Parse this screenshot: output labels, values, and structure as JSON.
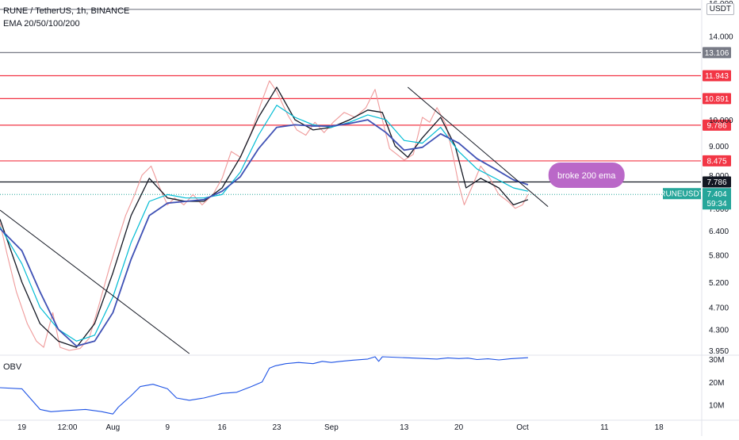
{
  "chart_data": [
    {
      "type": "candlestick",
      "title": "RUNE / TetherUS, 1h, BINANCE",
      "indicator_label": "EMA 20/50/100/200",
      "currency": "USDT",
      "y_scale": "log",
      "ylim": [
        3.9,
        16.2
      ],
      "price_ticks": [
        "16.000",
        "14.000",
        "10.000",
        "9.000",
        "8.000",
        "7.000",
        "6.400",
        "5.800",
        "5.200",
        "4.700",
        "4.300",
        "3.950"
      ],
      "x_ticks": [
        {
          "t": 0,
          "label": "19"
        },
        {
          "t": 2.5,
          "label": "12:00"
        },
        {
          "t": 5,
          "label": "Aug"
        },
        {
          "t": 8,
          "label": "9"
        },
        {
          "t": 11,
          "label": "16"
        },
        {
          "t": 14,
          "label": "23"
        },
        {
          "t": 17,
          "label": "Sep"
        },
        {
          "t": 21,
          "label": "13"
        },
        {
          "t": 24,
          "label": "20"
        },
        {
          "t": 27.5,
          "label": "Oct"
        },
        {
          "t": 32,
          "label": "11"
        },
        {
          "t": 35,
          "label": "18"
        }
      ],
      "x_range": [
        -1.2,
        37.3
      ],
      "horizontal_levels": [
        {
          "value": 15.6,
          "label": "",
          "color": "#787b86",
          "labeled": false
        },
        {
          "value": 13.106,
          "label": "13.106",
          "color": "#787b86"
        },
        {
          "value": 11.943,
          "label": "11.943",
          "color": "#f23645"
        },
        {
          "value": 10.891,
          "label": "10.891",
          "color": "#f23645"
        },
        {
          "value": 9.786,
          "label": "9.786",
          "color": "#f23645"
        },
        {
          "value": 8.475,
          "label": "8.475",
          "color": "#f23645"
        },
        {
          "value": 7.786,
          "label": "7.786",
          "color": "#131722"
        }
      ],
      "current_price": {
        "symbol": "RUNEUSDT",
        "value": "7.404",
        "countdown": "59:34",
        "price": 7.404,
        "color": "#26a69a"
      },
      "trendlines": [
        {
          "from": [
            -1.2,
            6.95
          ],
          "to": [
            9.2,
            3.9
          ]
        },
        {
          "from": [
            21.2,
            11.4
          ],
          "to": [
            28.9,
            7.05
          ]
        }
      ],
      "annotation": {
        "text": "broke 200 ema",
        "color": "#ba68c8",
        "at": [
          29.1,
          8.0
        ]
      },
      "ohlc_path": [
        [
          -1.2,
          6.6
        ],
        [
          -0.8,
          5.8
        ],
        [
          -0.3,
          5.0
        ],
        [
          0.3,
          4.4
        ],
        [
          0.8,
          4.1
        ],
        [
          1.2,
          4.0
        ],
        [
          1.7,
          4.6
        ],
        [
          2.1,
          4.0
        ],
        [
          2.6,
          3.95
        ],
        [
          3.2,
          3.98
        ],
        [
          3.7,
          4.15
        ],
        [
          4.2,
          4.7
        ],
        [
          4.8,
          5.5
        ],
        [
          5.3,
          6.2
        ],
        [
          5.7,
          6.8
        ],
        [
          6.2,
          7.4
        ],
        [
          6.6,
          8.0
        ],
        [
          7.1,
          8.3
        ],
        [
          7.5,
          7.7
        ],
        [
          8.0,
          7.1
        ],
        [
          8.4,
          7.3
        ],
        [
          8.9,
          7.1
        ],
        [
          9.4,
          7.4
        ],
        [
          9.9,
          7.1
        ],
        [
          10.5,
          7.4
        ],
        [
          11.0,
          7.9
        ],
        [
          11.5,
          8.8
        ],
        [
          12.0,
          8.6
        ],
        [
          12.6,
          9.5
        ],
        [
          13.1,
          10.6
        ],
        [
          13.6,
          11.7
        ],
        [
          14.0,
          11.2
        ],
        [
          14.6,
          10.2
        ],
        [
          15.1,
          9.6
        ],
        [
          15.6,
          9.4
        ],
        [
          16.1,
          9.9
        ],
        [
          16.6,
          9.5
        ],
        [
          17.1,
          9.9
        ],
        [
          17.7,
          10.3
        ],
        [
          18.3,
          10.1
        ],
        [
          18.9,
          10.5
        ],
        [
          19.4,
          11.3
        ],
        [
          19.8,
          10.0
        ],
        [
          20.2,
          8.9
        ],
        [
          20.6,
          8.7
        ],
        [
          21.0,
          8.5
        ],
        [
          21.5,
          8.7
        ],
        [
          22.0,
          10.1
        ],
        [
          22.4,
          9.9
        ],
        [
          22.8,
          10.5
        ],
        [
          23.3,
          9.8
        ],
        [
          23.7,
          8.6
        ],
        [
          24.0,
          7.7
        ],
        [
          24.3,
          7.1
        ],
        [
          24.7,
          7.6
        ],
        [
          25.2,
          8.3
        ],
        [
          25.7,
          7.9
        ],
        [
          26.2,
          7.4
        ],
        [
          26.7,
          7.2
        ],
        [
          27.1,
          7.0
        ],
        [
          27.5,
          7.1
        ],
        [
          27.8,
          7.404
        ]
      ],
      "ema_series": [
        {
          "period": 20,
          "color": "#131722",
          "points": [
            [
              -1.2,
              6.7
            ],
            [
              0,
              5.2
            ],
            [
              1,
              4.4
            ],
            [
              2,
              4.1
            ],
            [
              3,
              4.0
            ],
            [
              4,
              4.4
            ],
            [
              5,
              5.4
            ],
            [
              6,
              6.8
            ],
            [
              7,
              7.9
            ],
            [
              8,
              7.3
            ],
            [
              9,
              7.2
            ],
            [
              10,
              7.2
            ],
            [
              11,
              7.6
            ],
            [
              12,
              8.6
            ],
            [
              13,
              10.1
            ],
            [
              14,
              11.4
            ],
            [
              15,
              10.0
            ],
            [
              16,
              9.6
            ],
            [
              17,
              9.7
            ],
            [
              18,
              10.0
            ],
            [
              19,
              10.4
            ],
            [
              19.8,
              10.3
            ],
            [
              20.5,
              9.0
            ],
            [
              21.2,
              8.6
            ],
            [
              22,
              9.3
            ],
            [
              23,
              10.1
            ],
            [
              23.8,
              9.0
            ],
            [
              24.4,
              7.6
            ],
            [
              25.2,
              7.9
            ],
            [
              26.2,
              7.6
            ],
            [
              27,
              7.1
            ],
            [
              27.8,
              7.25
            ]
          ]
        },
        {
          "period": 50,
          "color": "#00bcd4",
          "points": [
            [
              -1.2,
              6.5
            ],
            [
              0,
              5.6
            ],
            [
              1,
              4.7
            ],
            [
              2,
              4.3
            ],
            [
              3,
              4.1
            ],
            [
              4,
              4.2
            ],
            [
              5,
              4.9
            ],
            [
              6,
              6.1
            ],
            [
              7,
              7.2
            ],
            [
              8,
              7.4
            ],
            [
              9,
              7.3
            ],
            [
              10,
              7.3
            ],
            [
              11,
              7.4
            ],
            [
              12,
              8.1
            ],
            [
              13,
              9.4
            ],
            [
              14,
              10.6
            ],
            [
              15,
              10.1
            ],
            [
              16,
              9.8
            ],
            [
              17,
              9.7
            ],
            [
              18,
              9.9
            ],
            [
              19,
              10.2
            ],
            [
              20,
              10.0
            ],
            [
              21,
              9.2
            ],
            [
              22,
              9.1
            ],
            [
              23,
              9.7
            ],
            [
              24,
              8.8
            ],
            [
              25,
              8.2
            ],
            [
              26,
              7.9
            ],
            [
              27,
              7.6
            ],
            [
              27.8,
              7.5
            ]
          ]
        },
        {
          "period": 200,
          "color": "#3f51b5",
          "points": [
            [
              -1.2,
              6.45
            ],
            [
              0,
              5.9
            ],
            [
              1,
              5.0
            ],
            [
              2,
              4.3
            ],
            [
              3,
              4.02
            ],
            [
              4,
              4.1
            ],
            [
              5,
              4.6
            ],
            [
              6,
              5.7
            ],
            [
              7,
              6.8
            ],
            [
              8,
              7.15
            ],
            [
              9,
              7.2
            ],
            [
              10,
              7.25
            ],
            [
              11,
              7.5
            ],
            [
              12,
              7.95
            ],
            [
              13,
              8.9
            ],
            [
              14,
              9.7
            ],
            [
              15,
              9.8
            ],
            [
              16,
              9.75
            ],
            [
              17,
              9.75
            ],
            [
              18,
              9.85
            ],
            [
              19,
              10.0
            ],
            [
              20,
              9.5
            ],
            [
              21,
              8.85
            ],
            [
              22,
              8.95
            ],
            [
              23,
              9.45
            ],
            [
              24,
              9.1
            ],
            [
              25,
              8.55
            ],
            [
              26,
              8.2
            ],
            [
              27,
              7.85
            ],
            [
              27.8,
              7.7
            ]
          ]
        }
      ]
    },
    {
      "type": "line",
      "title": "OBV",
      "y_ticks": [
        "30M",
        "20M",
        "10M"
      ],
      "ylim": [
        4,
        31
      ],
      "x_range": [
        -1.2,
        37.3
      ],
      "color": "#1e53e5",
      "x": [
        -1.2,
        0,
        1,
        1.6,
        2.4,
        3.5,
        4.4,
        5,
        5.3,
        6,
        6.5,
        7.2,
        8,
        8.5,
        9.2,
        10,
        10.5,
        11,
        11.8,
        12.6,
        13.2,
        13.6,
        13.9,
        14.5,
        15.2,
        16,
        16.5,
        17,
        17.5,
        18.2,
        19,
        19.4,
        19.6,
        19.8,
        22.8,
        23.4,
        24,
        24.5,
        25,
        25.6,
        26.2,
        26.8,
        27.4,
        27.8
      ],
      "values": [
        17.5,
        17,
        8,
        7,
        7.5,
        8,
        7,
        6,
        9,
        14,
        18,
        19,
        17,
        13,
        12,
        13,
        14,
        15,
        15.5,
        18,
        20,
        26,
        27,
        28,
        28.5,
        28,
        29,
        28.5,
        29,
        29.5,
        30,
        31,
        29,
        31,
        30,
        30.5,
        30.2,
        30.4,
        29.8,
        30.1,
        29.6,
        30.1,
        30.4,
        30.6
      ]
    }
  ]
}
